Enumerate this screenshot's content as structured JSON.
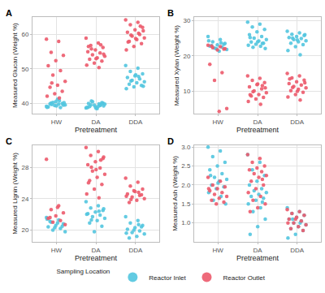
{
  "chart_data": [
    {
      "type": "scatter",
      "title": "A",
      "x_label": "Pretreatment",
      "y_label": "Measured Glucan (Weight %)",
      "categories": [
        "HW",
        "DA",
        "DDA"
      ],
      "series": [
        {
          "name": "Reactor Inlet",
          "color": "#52C5DF",
          "values": [
            [
              39.2,
              39.8,
              40.1,
              39.5,
              40.5,
              39.0,
              38.8,
              40.3,
              39.6,
              41.2,
              39.9,
              40.0,
              39.4,
              38.9,
              40.8,
              39.7,
              40.2,
              39.3
            ],
            [
              38.7,
              39.2,
              39.6,
              40.1,
              39.0,
              38.9,
              39.4,
              40.5,
              39.8,
              38.5,
              39.1,
              40.2,
              39.5,
              38.8,
              39.9,
              40.7,
              39.3,
              38.6,
              40.0,
              39.7
            ],
            [
              51.0,
              50.2,
              49.3,
              48.6,
              48.0,
              47.5,
              47.1,
              46.7,
              46.3,
              46.0,
              45.6,
              45.2,
              44.8,
              44.3,
              47.8,
              46.5,
              45.0,
              48.3
            ]
          ]
        },
        {
          "name": "Reactor Outlet",
          "color": "#EC5A6B",
          "values": [
            [
              58.6,
              58.0,
              54.8,
              53.9,
              52.4,
              50.9,
              49.5,
              48.2,
              46.4,
              45.3,
              44.7,
              43.5,
              42.8,
              42.1,
              41.6,
              45.9
            ],
            [
              58.9,
              57.5,
              56.8,
              56.2,
              55.5,
              55.0,
              54.6,
              54.1,
              53.7,
              53.2,
              52.8,
              52.3,
              51.7,
              51.1,
              50.4,
              55.8,
              54.3,
              53.0,
              56.5,
              57.0
            ],
            [
              64.2,
              63.5,
              62.8,
              62.0,
              61.3,
              60.6,
              60.0,
              59.5,
              59.0,
              58.5,
              58.0,
              57.3,
              56.5,
              55.5,
              60.3,
              59.8,
              61.0,
              58.8,
              57.8,
              62.4
            ]
          ]
        }
      ],
      "ylim": [
        37,
        65
      ],
      "yticks": [
        40,
        50,
        60
      ],
      "grid": true,
      "legend": "bottom",
      "legend_title": "Sampling Location"
    },
    {
      "type": "scatter",
      "title": "B",
      "x_label": "Pretreatment",
      "y_label": "Measured Xylan (Weight %)",
      "categories": [
        "HW",
        "DA",
        "DDA"
      ],
      "series": [
        {
          "name": "Reactor Inlet",
          "color": "#52C5DF",
          "values": [
            [
              25.5,
              24.6,
              24.0,
              23.5,
              23.1,
              22.8,
              22.5,
              22.2,
              21.8,
              21.3,
              22.9,
              23.3,
              22.0,
              24.3,
              23.7
            ],
            [
              29.6,
              29.0,
              28.2,
              27.5,
              26.8,
              26.0,
              25.5,
              25.0,
              24.6,
              24.2,
              23.9,
              23.6,
              23.3,
              23.0,
              22.7,
              22.4,
              22.1,
              24.0,
              25.2,
              23.5
            ],
            [
              27.0,
              26.5,
              26.1,
              25.8,
              25.5,
              25.2,
              24.9,
              24.6,
              24.3,
              24.0,
              23.6,
              23.2,
              22.6,
              21.5,
              20.3,
              25.0,
              26.0,
              24.5
            ]
          ]
        },
        {
          "name": "Reactor Outlet",
          "color": "#EC5A6B",
          "values": [
            [
              23.0,
              22.6,
              22.3,
              22.0,
              21.7,
              17.6,
              15.2,
              13.0,
              5.0,
              4.2,
              22.8,
              21.9
            ],
            [
              14.3,
              13.6,
              13.0,
              12.4,
              11.8,
              11.2,
              10.6,
              10.0,
              9.5,
              9.0,
              8.6,
              8.2,
              7.7,
              7.0,
              6.2,
              9.8,
              10.9,
              12.0,
              8.9,
              11.5
            ],
            [
              15.0,
              14.3,
              13.7,
              13.1,
              12.6,
              12.1,
              11.7,
              11.3,
              10.9,
              10.5,
              10.1,
              9.6,
              9.0,
              8.3,
              7.4,
              11.0,
              12.3,
              9.9,
              13.4
            ]
          ]
        }
      ],
      "ylim": [
        3.5,
        31
      ],
      "yticks": [
        10,
        20,
        30
      ],
      "grid": true
    },
    {
      "type": "scatter",
      "title": "C",
      "x_label": "Pretreatment",
      "y_label": "Measured Lignin (Weight %)",
      "categories": [
        "HW",
        "DA",
        "DDA"
      ],
      "series": [
        {
          "name": "Reactor Inlet",
          "color": "#52C5DF",
          "values": [
            [
              21.6,
              21.3,
              21.0,
              20.8,
              20.6,
              20.4,
              20.2,
              20.0,
              19.8,
              20.9,
              21.1,
              20.5,
              20.3,
              21.4
            ],
            [
              23.6,
              23.1,
              22.8,
              22.5,
              22.3,
              22.1,
              21.9,
              21.7,
              21.5,
              21.2,
              20.9,
              20.5,
              19.8,
              22.0,
              22.4,
              21.3,
              22.7
            ],
            [
              21.7,
              21.2,
              20.9,
              20.6,
              20.3,
              20.1,
              19.9,
              19.7,
              19.5,
              19.2,
              19.0,
              20.4,
              20.0,
              19.6,
              20.7
            ]
          ]
        },
        {
          "name": "Reactor Outlet",
          "color": "#EC5A6B",
          "values": [
            [
              29.0,
              23.1,
              22.6,
              22.2,
              21.8,
              21.5,
              21.2,
              21.0,
              20.7,
              22.9,
              21.6
            ],
            [
              30.5,
              30.0,
              29.5,
              29.1,
              28.7,
              28.3,
              27.9,
              27.5,
              27.1,
              26.7,
              26.3,
              25.8,
              25.2,
              24.6,
              24.1,
              28.0,
              29.3,
              27.7,
              26.0,
              28.9
            ],
            [
              26.6,
              26.1,
              25.6,
              25.2,
              24.9,
              24.6,
              24.4,
              24.2,
              24.0,
              23.8,
              23.5,
              24.5,
              25.0,
              24.3,
              24.8,
              23.9
            ]
          ]
        }
      ],
      "ylim": [
        18.5,
        30.8
      ],
      "yticks": [
        20,
        24,
        28
      ],
      "grid": true
    },
    {
      "type": "scatter",
      "title": "D",
      "x_label": "Pretreatment",
      "y_label": "Measured Ash (Weight %)",
      "categories": [
        "HW",
        "DA",
        "DDA"
      ],
      "series": [
        {
          "name": "Reactor Inlet",
          "color": "#52C5DF",
          "values": [
            [
              3.0,
              2.9,
              2.75,
              2.6,
              2.5,
              2.4,
              2.3,
              2.2,
              2.15,
              2.1,
              2.0,
              1.95,
              1.9,
              1.8,
              1.7,
              1.6,
              1.5,
              2.05,
              2.25
            ],
            [
              2.8,
              2.6,
              2.4,
              2.25,
              2.1,
              2.0,
              1.9,
              1.85,
              1.8,
              1.75,
              1.7,
              1.65,
              1.6,
              1.5,
              1.4,
              1.3,
              1.1,
              0.9,
              0.7,
              1.55
            ],
            [
              1.4,
              1.3,
              1.25,
              1.2,
              1.15,
              1.1,
              1.05,
              1.0,
              0.95,
              0.9,
              0.85,
              0.8,
              0.7,
              0.6,
              1.0,
              1.1
            ]
          ]
        },
        {
          "name": "Reactor Outlet",
          "color": "#EC5A6B",
          "values": [
            [
              2.2,
              2.1,
              2.0,
              1.95,
              1.9,
              1.85,
              1.8,
              1.75,
              1.7,
              1.65,
              1.6,
              1.55,
              1.5,
              1.9
            ],
            [
              2.8,
              2.7,
              2.6,
              2.5,
              2.45,
              2.4,
              2.35,
              2.3,
              2.25,
              2.2,
              2.1,
              2.0,
              1.9,
              1.8,
              1.7,
              1.6,
              1.5,
              1.4,
              1.3,
              2.15
            ],
            [
              1.35,
              1.3,
              1.25,
              1.2,
              1.15,
              1.1,
              1.05,
              1.0,
              0.95,
              0.9,
              0.85,
              0.8,
              1.1,
              1.0
            ]
          ]
        }
      ],
      "ylim": [
        0.5,
        3.05
      ],
      "yticks": [
        {
          "value": 1.0,
          "label": "1.0"
        },
        {
          "value": 1.5,
          "label": "1.5"
        },
        {
          "value": 2.0,
          "label": "2.0"
        },
        {
          "value": 2.5,
          "label": "2.5"
        },
        {
          "value": 3.0,
          "label": "3.0"
        }
      ],
      "grid": true
    }
  ]
}
